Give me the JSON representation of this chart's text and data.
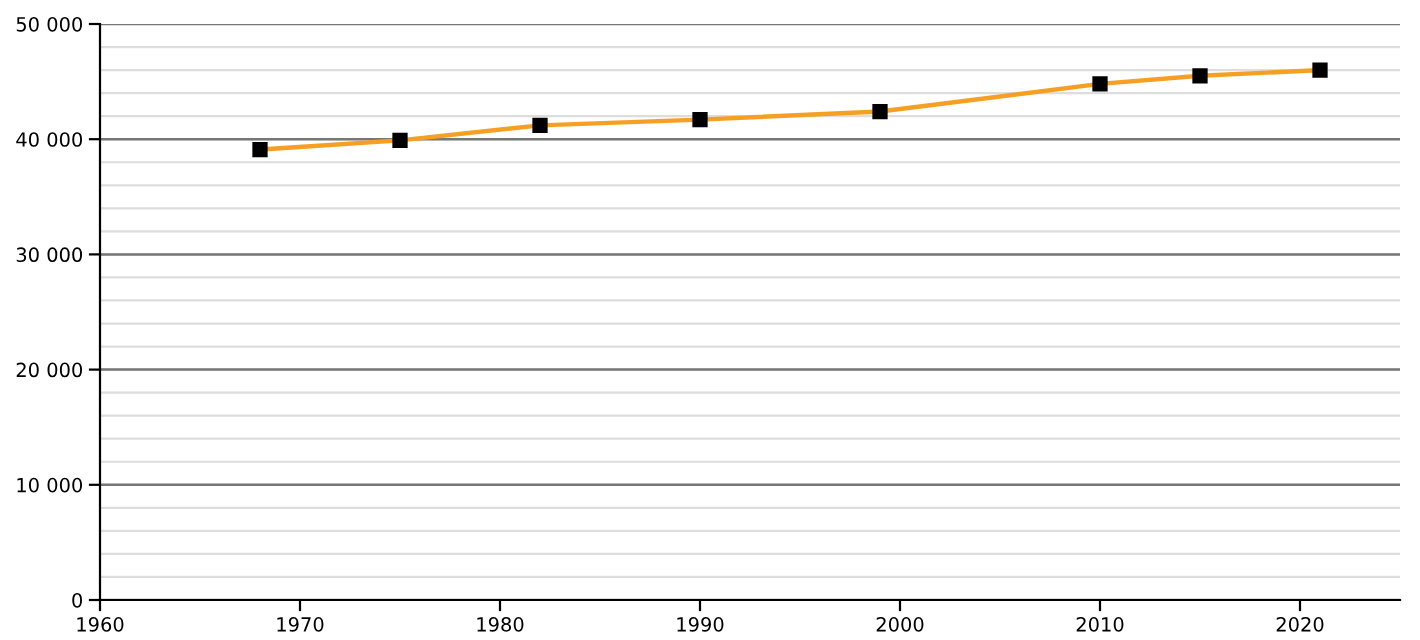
{
  "chart_data": {
    "type": "line",
    "x": [
      1968,
      1975,
      1982,
      1990,
      1999,
      2010,
      2015,
      2021
    ],
    "series": [
      {
        "color": "#f5a025",
        "values": [
          39100,
          39900,
          41200,
          41700,
          42400,
          44800,
          45500,
          46000
        ]
      }
    ],
    "xlim": [
      1960,
      2025
    ],
    "xticks": [
      1960,
      1970,
      1980,
      1990,
      2000,
      2010,
      2020
    ],
    "ylim": [
      0,
      50000
    ],
    "yticks": [
      {
        "value": 0,
        "label": "0"
      },
      {
        "value": 10000,
        "label": "10 000"
      },
      {
        "value": 20000,
        "label": "20 000"
      },
      {
        "value": 30000,
        "label": "30 000"
      },
      {
        "value": 40000,
        "label": "40 000"
      },
      {
        "value": 50000,
        "label": "50 000"
      }
    ],
    "grid": "y",
    "marker": "square",
    "line_style": "solid",
    "legend": false
  }
}
